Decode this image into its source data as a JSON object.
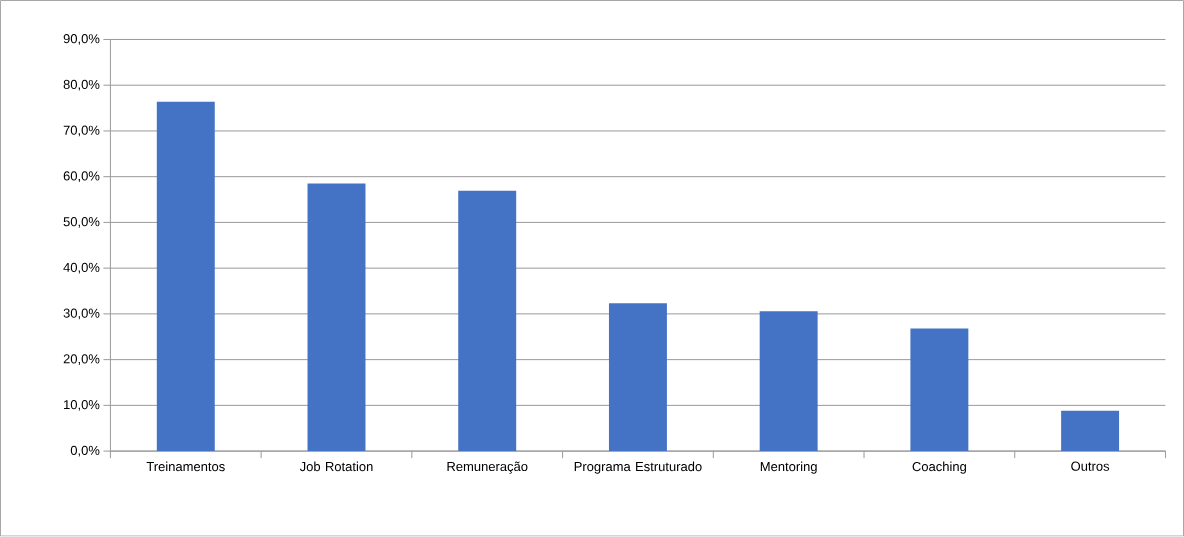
{
  "chart_data": {
    "type": "bar",
    "categories": [
      "Treinamentos",
      "Job Rotation",
      "Remuneração",
      "Programa Estruturado",
      "Mentoring",
      "Coaching",
      "Outros"
    ],
    "values": [
      76.4,
      58.5,
      56.9,
      32.3,
      30.6,
      26.8,
      8.8
    ],
    "color": "#4472c4",
    "ylim": [
      0,
      90
    ],
    "yticks": [
      {
        "value": 0,
        "label": "0,0%"
      },
      {
        "value": 10,
        "label": "10,0%"
      },
      {
        "value": 20,
        "label": "20,0%"
      },
      {
        "value": 30,
        "label": "30,0%"
      },
      {
        "value": 40,
        "label": "40,0%"
      },
      {
        "value": 50,
        "label": "50,0%"
      },
      {
        "value": 60,
        "label": "60,0%"
      },
      {
        "value": 70,
        "label": "70,0%"
      },
      {
        "value": 80,
        "label": "80,0%"
      },
      {
        "value": 90,
        "label": "90,0%"
      }
    ],
    "grid": "y"
  }
}
